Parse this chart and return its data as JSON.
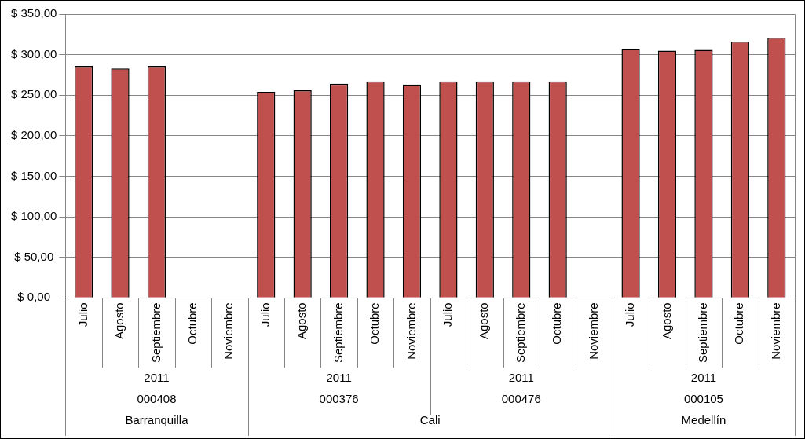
{
  "chart_data": {
    "type": "bar",
    "categories": [
      "Julio",
      "Agosto",
      "Septiembre",
      "Octubre",
      "Noviembre",
      "Julio",
      "Agosto",
      "Septiembre",
      "Octubre",
      "Noviembre",
      "Julio",
      "Agosto",
      "Septiembre",
      "Octubre",
      "Noviembre",
      "Julio",
      "Agosto",
      "Septiembre",
      "Octubre",
      "Noviembre"
    ],
    "values": [
      286,
      283,
      286,
      null,
      null,
      254,
      256,
      264,
      267,
      263,
      267,
      267,
      267,
      267,
      null,
      307,
      305,
      306,
      316,
      321
    ],
    "color": "#c0504d",
    "ylim": [
      0,
      350
    ],
    "yticks": [
      {
        "value": 0,
        "label": "$ 0,00"
      },
      {
        "value": 50,
        "label": "$ 50,00"
      },
      {
        "value": 100,
        "label": "$ 100,00"
      },
      {
        "value": 150,
        "label": "$ 150,00"
      },
      {
        "value": 200,
        "label": "$ 200,00"
      },
      {
        "value": 250,
        "label": "$ 250,00"
      },
      {
        "value": 300,
        "label": "$ 300,00"
      },
      {
        "value": 350,
        "label": "$ 350,00"
      }
    ],
    "grid": "y",
    "annotations": [
      "2011",
      "2011",
      "2011",
      "2011",
      "000408",
      "000376",
      "000476",
      "000105",
      "Barranquilla",
      "Cali",
      "Medellín"
    ]
  }
}
